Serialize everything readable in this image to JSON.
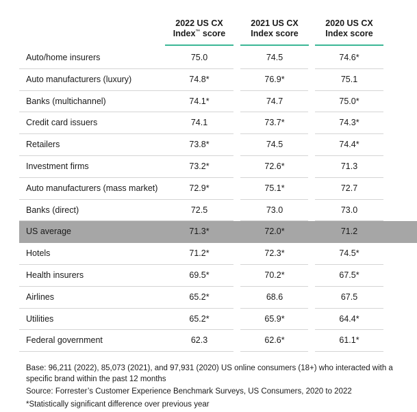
{
  "header": {
    "col1_line1": "2022 US CX",
    "col1_line2": "Index",
    "col1_tm": "™",
    "col1_line2_rest": " score",
    "col2_line1": "2021 US CX",
    "col2_line2": "Index score",
    "col3_line1": "2020 US CX",
    "col3_line2": "Index score"
  },
  "rows": [
    {
      "label": "Auto/home insurers",
      "v2022": "75.0",
      "v2021": "74.5",
      "v2020": "74.6*"
    },
    {
      "label": "Auto manufacturers (luxury)",
      "v2022": "74.8*",
      "v2021": "76.9*",
      "v2020": "75.1"
    },
    {
      "label": "Banks (multichannel)",
      "v2022": "74.1*",
      "v2021": "74.7",
      "v2020": "75.0*"
    },
    {
      "label": "Credit card issuers",
      "v2022": "74.1",
      "v2021": "73.7*",
      "v2020": "74.3*"
    },
    {
      "label": "Retailers",
      "v2022": "73.8*",
      "v2021": "74.5",
      "v2020": "74.4*"
    },
    {
      "label": "Investment firms",
      "v2022": "73.2*",
      "v2021": "72.6*",
      "v2020": "71.3"
    },
    {
      "label": "Auto manufacturers (mass market)",
      "v2022": "72.9*",
      "v2021": "75.1*",
      "v2020": "72.7"
    },
    {
      "label": "Banks (direct)",
      "v2022": "72.5",
      "v2021": "73.0",
      "v2020": "73.0"
    },
    {
      "label": "US average",
      "v2022": "71.3*",
      "v2021": "72.0*",
      "v2020": "71.2",
      "highlight": true
    },
    {
      "label": "Hotels",
      "v2022": "71.2*",
      "v2021": "72.3*",
      "v2020": "74.5*"
    },
    {
      "label": "Health insurers",
      "v2022": "69.5*",
      "v2021": "70.2*",
      "v2020": "67.5*"
    },
    {
      "label": "Airlines",
      "v2022": "65.2*",
      "v2021": "68.6",
      "v2020": "67.5"
    },
    {
      "label": "Utilities",
      "v2022": "65.2*",
      "v2021": "65.9*",
      "v2020": "64.4*"
    },
    {
      "label": "Federal government",
      "v2022": "62.3",
      "v2021": "62.6*",
      "v2020": "61.1*"
    }
  ],
  "footnotes": {
    "base": "Base: 96,211 (2022), 85,073 (2021), and 97,931 (2020) US online consumers (18+) who interacted with a specific brand within the past 12 months",
    "source": "Source: Forrester’s Customer Experience Benchmark Surveys, US Consumers, 2020 to 2022",
    "significance": "*Statistically significant difference over previous year"
  },
  "colors": {
    "header_rule": "#3ab795",
    "highlight_row": "#a6a6a6",
    "row_rule": "#d4d4d4"
  }
}
